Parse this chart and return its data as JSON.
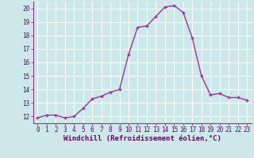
{
  "x": [
    0,
    1,
    2,
    3,
    4,
    5,
    6,
    7,
    8,
    9,
    10,
    11,
    12,
    13,
    14,
    15,
    16,
    17,
    18,
    19,
    20,
    21,
    22,
    23
  ],
  "y": [
    11.9,
    12.1,
    12.1,
    11.9,
    12.0,
    12.6,
    13.3,
    13.5,
    13.8,
    14.0,
    16.6,
    18.6,
    18.7,
    19.4,
    20.1,
    20.2,
    19.7,
    17.8,
    15.0,
    13.6,
    13.7,
    13.4,
    13.4,
    13.2
  ],
  "line_color": "#993399",
  "marker": "+",
  "marker_size": 3,
  "xlabel": "Windchill (Refroidissement éolien,°C)",
  "xlim": [
    -0.5,
    23.5
  ],
  "ylim": [
    11.5,
    20.5
  ],
  "yticks": [
    12,
    13,
    14,
    15,
    16,
    17,
    18,
    19,
    20
  ],
  "xticks": [
    0,
    1,
    2,
    3,
    4,
    5,
    6,
    7,
    8,
    9,
    10,
    11,
    12,
    13,
    14,
    15,
    16,
    17,
    18,
    19,
    20,
    21,
    22,
    23
  ],
  "bg_color": "#cce8e8",
  "grid_color": "#ffffff",
  "tick_label_size": 5.5,
  "xlabel_size": 6.5,
  "line_width": 1.0
}
